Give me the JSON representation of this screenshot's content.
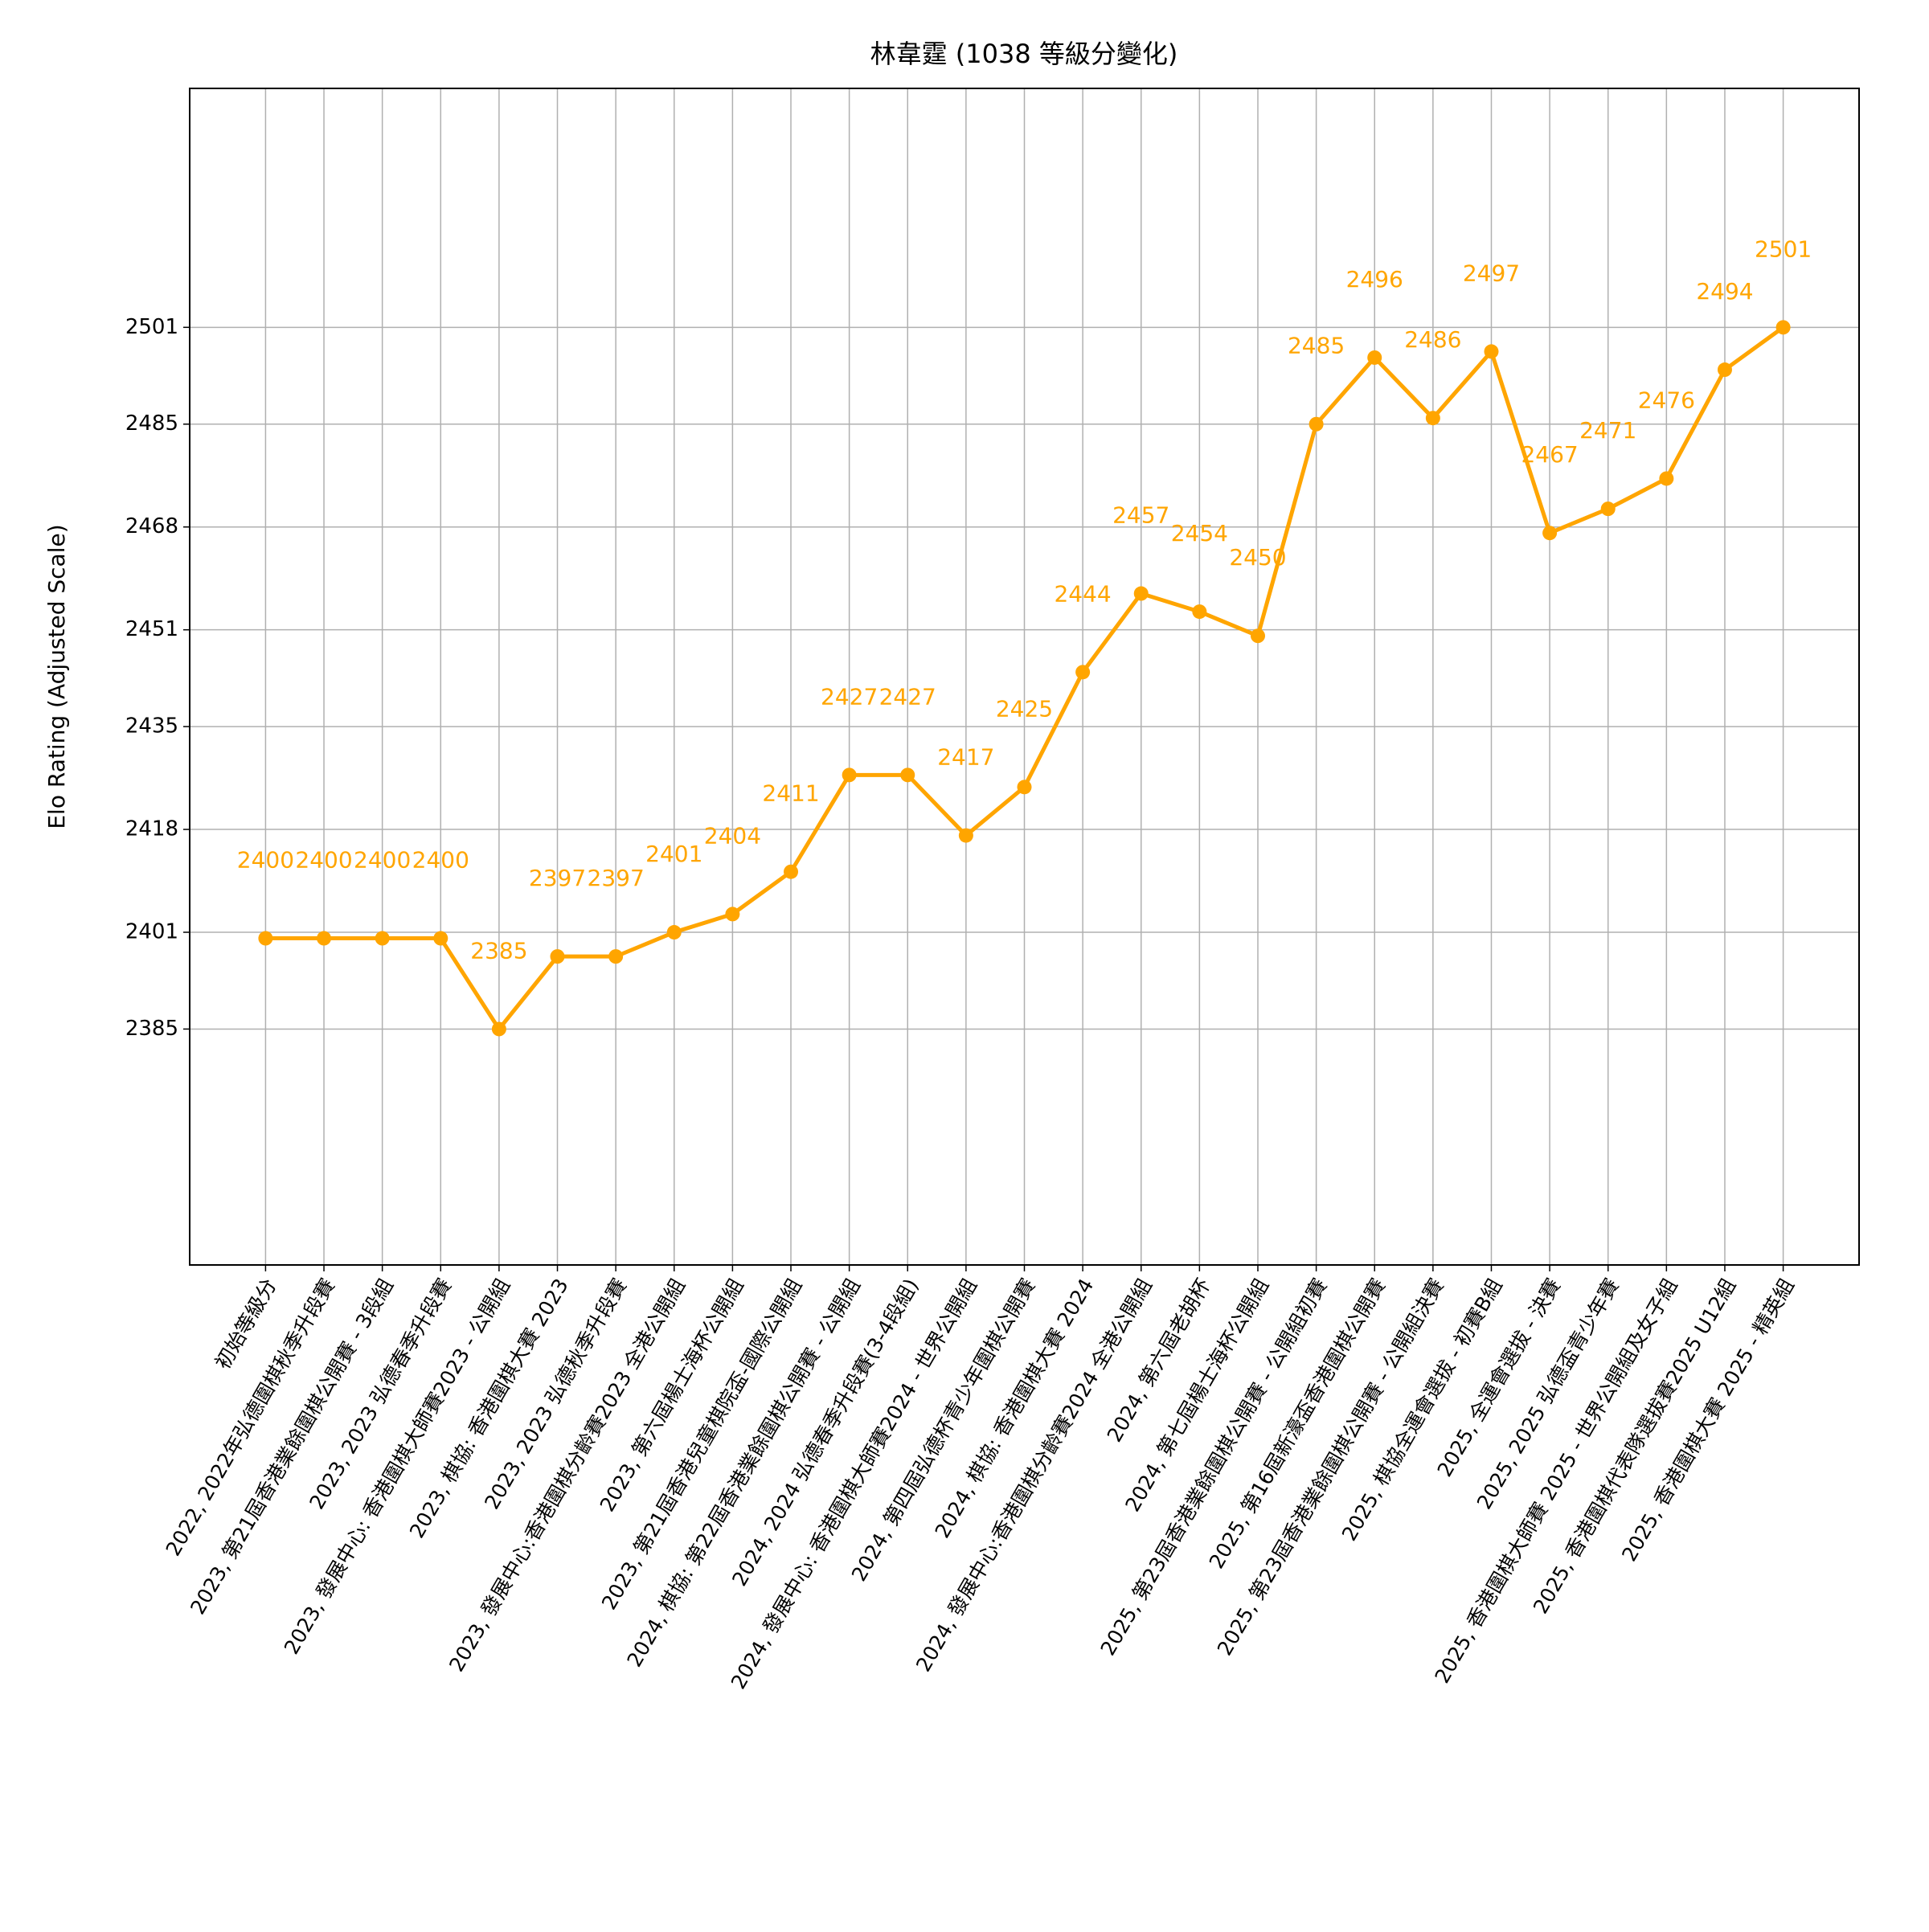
{
  "chart_data": {
    "type": "line",
    "title": "林韋霆 (1038 等級分變化)",
    "y_label": "Elo Rating (Adjusted Scale)",
    "categories": [
      "初始等級分",
      "2022, 2022年弘德圍棋秋季升段賽",
      "2023, 第21屆香港業餘圍棋公開賽 - 3段組",
      "2023, 2023 弘德春季升段賽",
      "2023, 發展中心: 香港圍棋大師賽2023 - 公開組",
      "2023, 棋協: 香港圍棋大賽 2023",
      "2023, 2023 弘德秋季升段賽",
      "2023, 發展中心:香港圍棋分齡賽2023 全港公開組",
      "2023, 第六屆楊士海杯公開組",
      "2023, 第21屆香港兒童棋院盃-國際公開組",
      "2024, 棋協: 第22屆香港業餘圍棋公開賽 - 公開組",
      "2024, 2024 弘德春季升段賽(3-4段組)",
      "2024, 發展中心: 香港圍棋大師賽2024 - 世界公開組",
      "2024, 第四屆弘德杯青少年圍棋公開賽",
      "2024, 棋協: 香港圍棋大賽 2024",
      "2024, 發展中心:香港圍棋分齡賽2024 全港公開組",
      "2024, 第六屆老胡杯",
      "2024, 第七屆楊士海杯公開組",
      "2025, 第23屆香港業餘圍棋公開賽 - 公開組初賽",
      "2025, 第16屆新濠盃香港圍棋公開賽",
      "2025, 第23屆香港業餘圍棋公開賽 - 公開組決賽",
      "2025, 棋協全運會選拔 - 初賽B組",
      "2025, 全運會選拔 - 決賽",
      "2025, 2025 弘德盃青少年賽",
      "2025, 香港圍棋大師賽 2025 - 世界公開組及女子組",
      "2025, 香港圍棋代表隊選拔賽2025 U12組",
      "2025, 香港圍棋大賽 2025 - 精英組"
    ],
    "series": [
      {
        "name": "Elo",
        "color": "#ffa500",
        "values": [
          2400,
          2400,
          2400,
          2400,
          2385,
          2397,
          2397,
          2401,
          2404,
          2411,
          2427,
          2427,
          2417,
          2425,
          2444,
          2457,
          2454,
          2450,
          2485,
          2496,
          2486,
          2497,
          2467,
          2471,
          2476,
          2494,
          2501
        ]
      }
    ],
    "ylim": [
      2346,
      2540.5
    ],
    "yticks": [
      2385,
      2401,
      2418,
      2435,
      2451,
      2468,
      2485,
      2501
    ],
    "grid": true
  }
}
